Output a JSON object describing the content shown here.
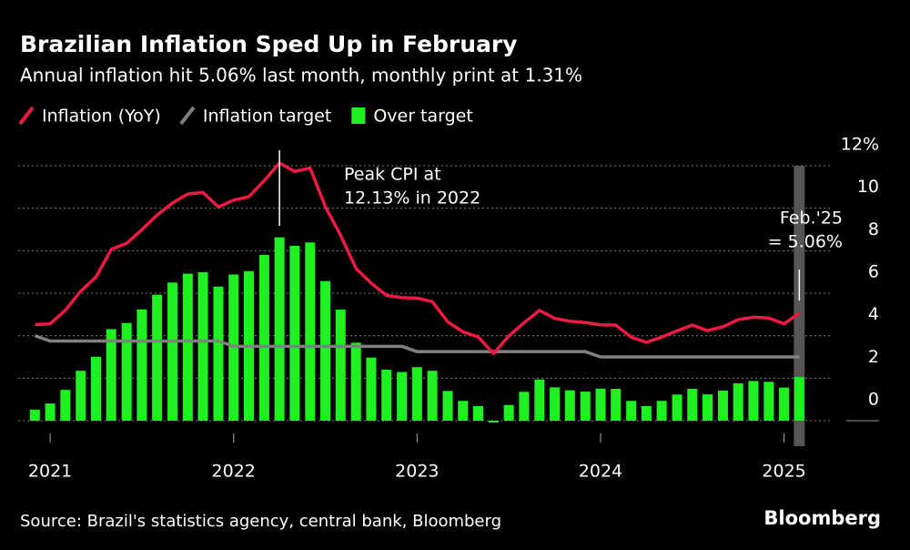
{
  "chart_data": {
    "type": "bar-line",
    "title": "Brazilian Inflation Sped Up in February",
    "subtitle": "Annual inflation hit 5.06% last month, monthly print at 1.31%",
    "source": "Source: Brazil's statistics agency, central bank, Bloomberg",
    "brand": "Bloomberg",
    "peak_annotation": [
      "Peak CPI at",
      "12.13% in 2022"
    ],
    "latest_annotation": [
      "Feb.'25",
      "= 5.06%"
    ],
    "x": [
      2020.917,
      2021,
      2021.083,
      2021.167,
      2021.25,
      2021.333,
      2021.417,
      2021.5,
      2021.583,
      2021.667,
      2021.75,
      2021.833,
      2021.917,
      2022,
      2022.083,
      2022.167,
      2022.25,
      2022.333,
      2022.417,
      2022.5,
      2022.583,
      2022.667,
      2022.75,
      2022.833,
      2022.917,
      2023,
      2023.083,
      2023.167,
      2023.25,
      2023.333,
      2023.417,
      2023.5,
      2023.583,
      2023.667,
      2023.75,
      2023.833,
      2023.917,
      2024,
      2024.083,
      2024.167,
      2024.25,
      2024.333,
      2024.417,
      2024.5,
      2024.583,
      2024.667,
      2024.75,
      2024.833,
      2024.917,
      2025,
      2025.083
    ],
    "series": [
      {
        "name": "Inflation (YoY)",
        "kind": "line",
        "color": "#ee1a44",
        "values": [
          4.52,
          4.56,
          5.2,
          6.1,
          6.76,
          8.06,
          8.35,
          8.99,
          9.68,
          10.25,
          10.67,
          10.74,
          10.06,
          10.38,
          10.54,
          11.3,
          12.13,
          11.73,
          11.89,
          10.07,
          8.73,
          7.17,
          6.47,
          5.9,
          5.79,
          5.77,
          5.6,
          4.65,
          4.18,
          3.94,
          3.16,
          3.99,
          4.61,
          5.19,
          4.82,
          4.68,
          4.62,
          4.51,
          4.5,
          3.93,
          3.69,
          3.93,
          4.23,
          4.5,
          4.24,
          4.42,
          4.76,
          4.87,
          4.83,
          4.56,
          5.06
        ]
      },
      {
        "name": "Inflation target",
        "kind": "line",
        "color": "#808080",
        "values": [
          4.0,
          3.75,
          3.75,
          3.75,
          3.75,
          3.75,
          3.75,
          3.75,
          3.75,
          3.75,
          3.75,
          3.75,
          3.75,
          3.5,
          3.5,
          3.5,
          3.5,
          3.5,
          3.5,
          3.5,
          3.5,
          3.5,
          3.5,
          3.5,
          3.5,
          3.25,
          3.25,
          3.25,
          3.25,
          3.25,
          3.25,
          3.25,
          3.25,
          3.25,
          3.25,
          3.25,
          3.25,
          3.0,
          3.0,
          3.0,
          3.0,
          3.0,
          3.0,
          3.0,
          3.0,
          3.0,
          3.0,
          3.0,
          3.0,
          3.0,
          3.0
        ]
      },
      {
        "name": "Over target",
        "kind": "bar",
        "color": "#1ff01f",
        "values": [
          0.52,
          0.81,
          1.45,
          2.35,
          3.01,
          4.31,
          4.6,
          5.24,
          5.93,
          6.5,
          6.92,
          6.99,
          6.31,
          6.88,
          7.04,
          7.8,
          8.63,
          8.23,
          8.39,
          6.57,
          5.23,
          3.67,
          2.97,
          2.4,
          2.29,
          2.52,
          2.35,
          1.4,
          0.93,
          0.69,
          -0.09,
          0.74,
          1.36,
          1.94,
          1.57,
          1.43,
          1.37,
          1.51,
          1.5,
          0.93,
          0.69,
          0.93,
          1.23,
          1.5,
          1.24,
          1.42,
          1.76,
          1.87,
          1.83,
          1.56,
          2.06
        ]
      }
    ],
    "xlim": [
      2020.826,
      2025.25
    ],
    "xticks": [
      2021,
      2022,
      2023,
      2024,
      2025
    ],
    "ylim": [
      0,
      12
    ],
    "yticks": [
      0,
      2,
      4,
      6,
      8,
      10,
      {
        "value": 12,
        "label": "12%"
      }
    ],
    "grid": true,
    "legend": "top-left"
  }
}
